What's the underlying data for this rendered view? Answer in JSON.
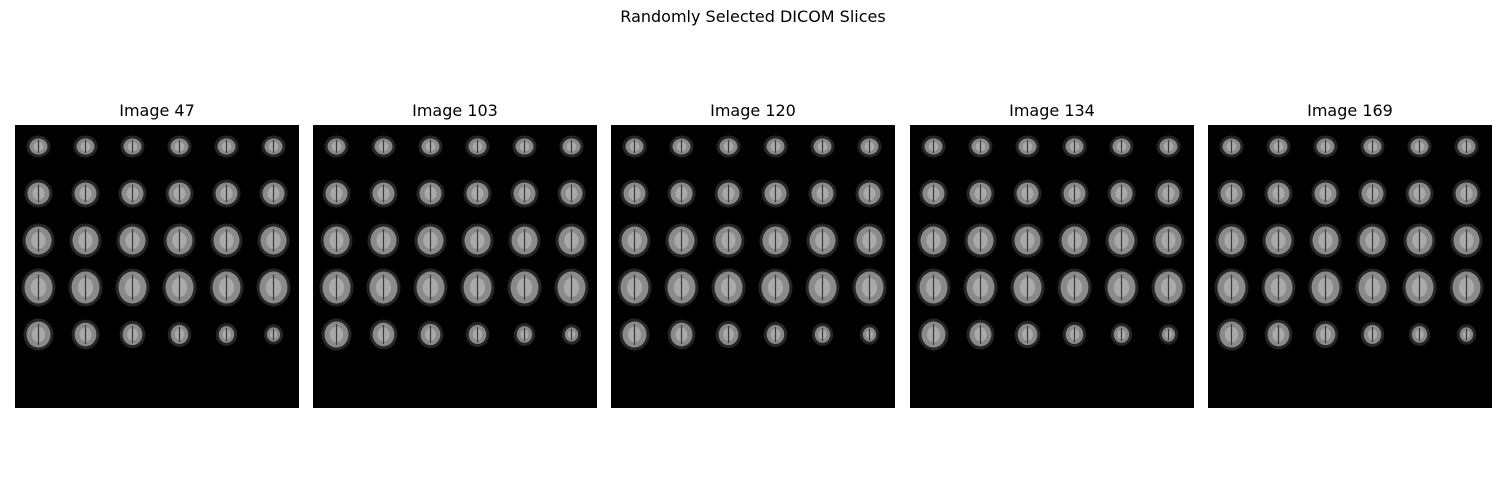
{
  "figure": {
    "title": "Randomly Selected DICOM Slices"
  },
  "panels": [
    {
      "title": "Image 47"
    },
    {
      "title": "Image 103"
    },
    {
      "title": "Image 120"
    },
    {
      "title": "Image 134"
    },
    {
      "title": "Image 169"
    }
  ],
  "montage": {
    "rows": 5,
    "cols": 6,
    "colors": {
      "background": "#000000",
      "tissue": "#8a8a8a",
      "bright": "#d0d0d0"
    }
  }
}
